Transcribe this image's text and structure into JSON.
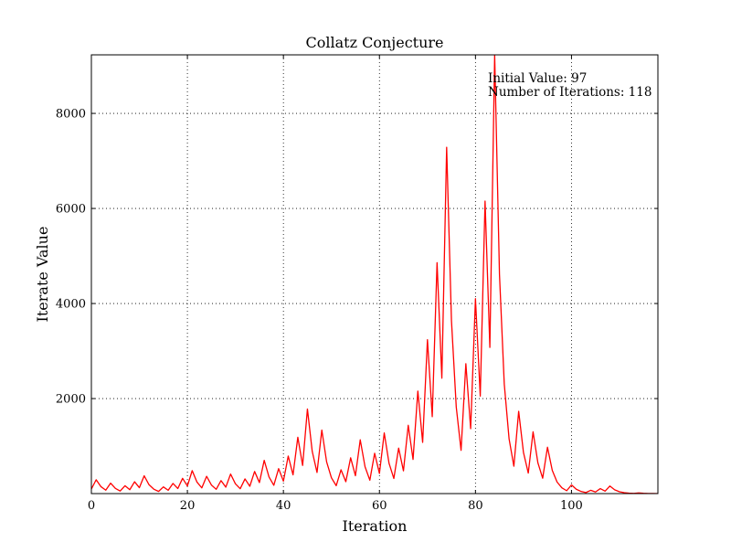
{
  "chart_data": {
    "type": "line",
    "title": "Collatz Conjecture",
    "xlabel": "Iteration",
    "ylabel": "Iterate Value",
    "xlim": [
      0,
      118
    ],
    "ylim": [
      1,
      9232
    ],
    "grid": true,
    "grid_style": "dotted",
    "xticks": [
      0,
      20,
      40,
      60,
      80,
      100
    ],
    "xtick_labels": [
      "0",
      "20",
      "40",
      "60",
      "80",
      "100"
    ],
    "yticks": [
      2000,
      4000,
      6000,
      8000
    ],
    "ytick_labels": [
      "2000",
      "4000",
      "6000",
      "8000"
    ],
    "annotation_lines": [
      "Initial Value: 97",
      "Number of Iterations: 118"
    ],
    "series": [
      {
        "color": "#ff0000",
        "x": [
          0,
          1,
          2,
          3,
          4,
          5,
          6,
          7,
          8,
          9,
          10,
          11,
          12,
          13,
          14,
          15,
          16,
          17,
          18,
          19,
          20,
          21,
          22,
          23,
          24,
          25,
          26,
          27,
          28,
          29,
          30,
          31,
          32,
          33,
          34,
          35,
          36,
          37,
          38,
          39,
          40,
          41,
          42,
          43,
          44,
          45,
          46,
          47,
          48,
          49,
          50,
          51,
          52,
          53,
          54,
          55,
          56,
          57,
          58,
          59,
          60,
          61,
          62,
          63,
          64,
          65,
          66,
          67,
          68,
          69,
          70,
          71,
          72,
          73,
          74,
          75,
          76,
          77,
          78,
          79,
          80,
          81,
          82,
          83,
          84,
          85,
          86,
          87,
          88,
          89,
          90,
          91,
          92,
          93,
          94,
          95,
          96,
          97,
          98,
          99,
          100,
          101,
          102,
          103,
          104,
          105,
          106,
          107,
          108,
          109,
          110,
          111,
          112,
          113,
          114,
          115,
          116,
          117,
          118
        ],
        "y": [
          97,
          292,
          146,
          73,
          220,
          110,
          55,
          166,
          83,
          250,
          125,
          376,
          188,
          94,
          47,
          142,
          71,
          214,
          107,
          322,
          161,
          484,
          242,
          121,
          364,
          182,
          91,
          274,
          137,
          412,
          206,
          103,
          310,
          155,
          466,
          233,
          700,
          350,
          175,
          526,
          263,
          790,
          395,
          1186,
          593,
          1780,
          890,
          445,
          1336,
          668,
          334,
          167,
          502,
          251,
          754,
          377,
          1132,
          566,
          283,
          850,
          425,
          1276,
          638,
          319,
          958,
          479,
          1438,
          719,
          2158,
          1079,
          3238,
          1619,
          4858,
          2429,
          7288,
          3644,
          1822,
          911,
          2734,
          1367,
          4102,
          2051,
          6154,
          3077,
          9232,
          4616,
          2308,
          1154,
          577,
          1732,
          866,
          433,
          1300,
          650,
          325,
          976,
          488,
          244,
          122,
          61,
          184,
          92,
          46,
          23,
          70,
          35,
          106,
          53,
          160,
          80,
          40,
          20,
          10,
          5,
          16,
          8,
          4,
          2,
          1
        ]
      }
    ]
  }
}
